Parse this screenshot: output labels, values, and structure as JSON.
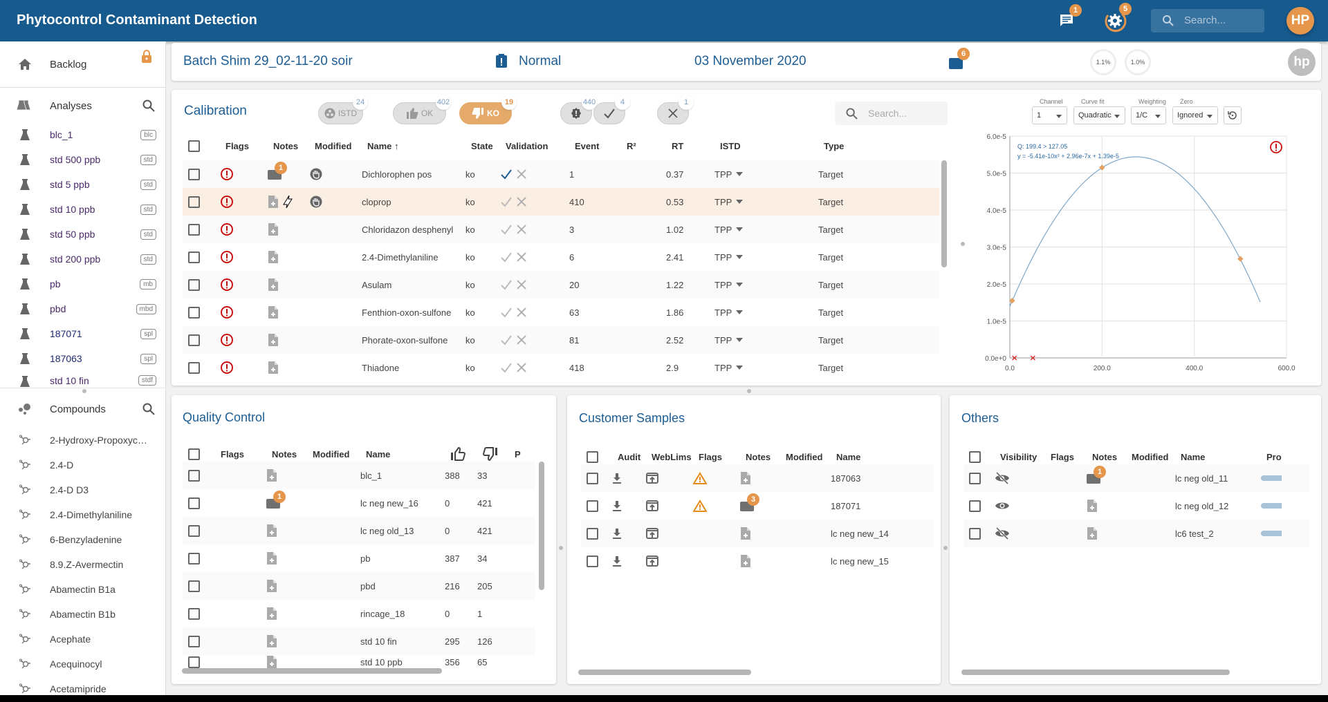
{
  "header": {
    "title": "Phytocontrol Contaminant Detection",
    "messages_badge": "1",
    "tasks_badge": "5",
    "search_placeholder": "Search...",
    "avatar": "HP"
  },
  "colors": {
    "primary": "#165a8e",
    "accent": "#e5964a",
    "error": "#cc1111",
    "title": "#1c5d94"
  },
  "sidebar": {
    "backlog": "Backlog",
    "analyses_title": "Analyses",
    "analyses": [
      {
        "name": "blc_1",
        "tag": "blc"
      },
      {
        "name": "std 500 ppb",
        "tag": "std"
      },
      {
        "name": "std 5 ppb",
        "tag": "std"
      },
      {
        "name": "std 10 ppb",
        "tag": "std"
      },
      {
        "name": "std 50 ppb",
        "tag": "std"
      },
      {
        "name": "std 200 ppb",
        "tag": "std"
      },
      {
        "name": "pb",
        "tag": "mb"
      },
      {
        "name": "pbd",
        "tag": "mbd"
      },
      {
        "name": "187071",
        "tag": "spl"
      },
      {
        "name": "187063",
        "tag": "spl"
      },
      {
        "name": "std 10 fin",
        "tag": "stdf"
      }
    ],
    "compounds_title": "Compounds",
    "compounds": [
      "2-Hydroxy-Propoxycarbazone",
      "2.4-D",
      "2.4-D D3",
      "2.4-Dimethylaniline",
      "6-Benzyladenine",
      "8.9.Z-Avermectin",
      "Abamectin B1a",
      "Abamectin B1b",
      "Acephate",
      "Acequinocyl",
      "Acetamipride"
    ]
  },
  "batch": {
    "name": "Batch Shim 29_02-11-20 soir",
    "priority": "Normal",
    "date": "03 November 2020",
    "folder_badge": "6",
    "gauge1": "1.1%",
    "gauge2": "1.0%",
    "user": "hp"
  },
  "calibration": {
    "title": "Calibration",
    "filters": [
      {
        "label": "ISTD",
        "count": "24"
      },
      {
        "label": "OK",
        "count": "402"
      },
      {
        "label": "KO",
        "count": "19"
      },
      {
        "label": "",
        "count": "440"
      },
      {
        "label": "",
        "count": "4"
      },
      {
        "label": "",
        "count": "1"
      }
    ],
    "search_placeholder": "Search...",
    "columns": [
      "Flags",
      "Notes",
      "Modified",
      "Name ↑",
      "State",
      "Validation",
      "Event",
      "R²",
      "RT",
      "ISTD",
      "Type"
    ],
    "rows": [
      {
        "name": "Dichlorophen pos",
        "state": "ko",
        "event": "1",
        "rt": "0.37",
        "istd": "TPP",
        "type": "Target",
        "notes": "1",
        "modified": true,
        "validated": true
      },
      {
        "name": "cloprop",
        "state": "ko",
        "event": "410",
        "rt": "0.53",
        "istd": "TPP",
        "type": "Target",
        "notes": "",
        "modified": true,
        "validated": false,
        "selected": true
      },
      {
        "name": "Chloridazon desphenyl",
        "state": "ko",
        "event": "3",
        "rt": "1.02",
        "istd": "TPP",
        "type": "Target",
        "notes": ""
      },
      {
        "name": "2.4-Dimethylaniline",
        "state": "ko",
        "event": "6",
        "rt": "2.41",
        "istd": "TPP",
        "type": "Target",
        "notes": ""
      },
      {
        "name": "Asulam",
        "state": "ko",
        "event": "20",
        "rt": "1.22",
        "istd": "TPP",
        "type": "Target",
        "notes": ""
      },
      {
        "name": "Fenthion-oxon-sulfone",
        "state": "ko",
        "event": "63",
        "rt": "1.86",
        "istd": "TPP",
        "type": "Target",
        "notes": ""
      },
      {
        "name": "Phorate-oxon-sulfone",
        "state": "ko",
        "event": "81",
        "rt": "2.52",
        "istd": "TPP",
        "type": "Target",
        "notes": ""
      },
      {
        "name": "Thiadone",
        "state": "ko",
        "event": "418",
        "rt": "2.9",
        "istd": "TPP",
        "type": "Target",
        "notes": ""
      }
    ]
  },
  "curve_controls": {
    "channel_label": "Channel",
    "channel": "1",
    "fit_label": "Curve fit",
    "fit": "Quadratic",
    "weighting_label": "Weighting",
    "weighting": "1/C",
    "zero_label": "Zero",
    "zero": "Ignored"
  },
  "chart_data": {
    "type": "scatter",
    "title": "",
    "annotations": [
      "Q: 199.4 > 127.05",
      "y = -5.41e-10x² + 2.96e-7x + 1.39e-5"
    ],
    "fit": {
      "a": -5.41e-10,
      "b": 2.96e-07,
      "c": 1.39e-05,
      "x_range": [
        0,
        545
      ]
    },
    "points": [
      {
        "x": 5,
        "y": 1.55e-05
      },
      {
        "x": 200,
        "y": 5.15e-05
      },
      {
        "x": 500,
        "y": 2.68e-05
      }
    ],
    "excluded_points": [
      {
        "x": 10,
        "y": 0
      },
      {
        "x": 50,
        "y": 0
      }
    ],
    "xlim": [
      0,
      600
    ],
    "ylim": [
      0,
      6e-05
    ],
    "xticks": [
      "0.0",
      "200.0",
      "400.0",
      "600.0"
    ],
    "yticks": [
      "0.0e+0",
      "1.0e-5",
      "2.0e-5",
      "3.0e-5",
      "4.0e-5",
      "5.0e-5",
      "6.0e-5"
    ],
    "grid": true
  },
  "qc": {
    "title": "Quality Control",
    "columns": [
      "Flags",
      "Notes",
      "Modified",
      "Name",
      "P"
    ],
    "rows": [
      {
        "name": "blc_1",
        "ok": "388",
        "ko": "33",
        "notes": ""
      },
      {
        "name": "lc neg new_16",
        "ok": "0",
        "ko": "421",
        "notes": "1"
      },
      {
        "name": "lc neg old_13",
        "ok": "0",
        "ko": "421",
        "notes": ""
      },
      {
        "name": "pb",
        "ok": "387",
        "ko": "34",
        "notes": ""
      },
      {
        "name": "pbd",
        "ok": "216",
        "ko": "205",
        "notes": ""
      },
      {
        "name": "rincage_18",
        "ok": "0",
        "ko": "1",
        "notes": ""
      },
      {
        "name": "std 10 fin",
        "ok": "295",
        "ko": "126",
        "notes": ""
      },
      {
        "name": "std 10 ppb",
        "ok": "356",
        "ko": "65",
        "notes": ""
      }
    ]
  },
  "customer": {
    "title": "Customer Samples",
    "columns": [
      "Audit",
      "WebLims",
      "Flags",
      "Notes",
      "Modified",
      "Name"
    ],
    "rows": [
      {
        "name": "187063",
        "flag": true,
        "notes": ""
      },
      {
        "name": "187071",
        "flag": true,
        "notes": "3"
      },
      {
        "name": "lc neg new_14",
        "flag": false,
        "notes": ""
      },
      {
        "name": "lc neg new_15",
        "flag": false,
        "notes": ""
      }
    ]
  },
  "others": {
    "title": "Others",
    "columns": [
      "Visibility",
      "Flags",
      "Notes",
      "Modified",
      "Name",
      "Pro"
    ],
    "rows": [
      {
        "name": "lc neg old_11",
        "visible": false,
        "notes": "1"
      },
      {
        "name": "lc neg old_12",
        "visible": true,
        "notes": ""
      },
      {
        "name": "lc6 test_2",
        "visible": false,
        "notes": ""
      }
    ]
  }
}
